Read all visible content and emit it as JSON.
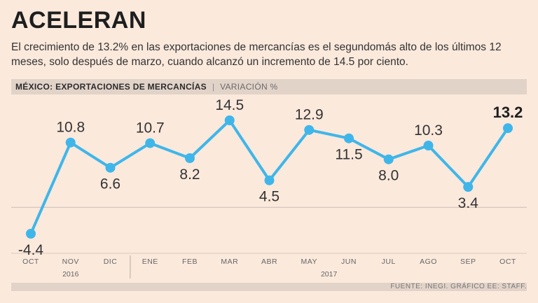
{
  "header": {
    "title": "ACELERAN",
    "subtitle": "El crecimiento de 13.2% en las exportaciones de mercancías es el segundomás alto de los últimos 12 meses, solo después de marzo, cuando alcanzó un incremento de 14.5 por ciento."
  },
  "chart_label": {
    "main": "MÉXICO: EXPORTACIONES DE MERCANCÍAS",
    "separator": "|",
    "unit": "VARIACIÓN %"
  },
  "footer": {
    "source": "FUENTE: INEGI. GRÁFICO EE: STAFF."
  },
  "colors": {
    "line": "#3fb6ea",
    "background": "#fbe9dc",
    "bar": "#e2d3c9"
  },
  "chart_data": {
    "type": "line",
    "title": "MÉXICO: EXPORTACIONES DE MERCANCÍAS",
    "ylabel": "VARIACIÓN %",
    "categories": [
      "OCT",
      "NOV",
      "DIC",
      "ENE",
      "FEB",
      "MAR",
      "ABR",
      "MAY",
      "JUN",
      "JUL",
      "AGO",
      "SEP",
      "OCT"
    ],
    "values": [
      -4.4,
      10.8,
      6.6,
      10.7,
      8.2,
      14.5,
      4.5,
      12.9,
      11.5,
      8.0,
      10.3,
      3.4,
      13.2
    ],
    "value_labels": [
      "-4.4",
      "10.8",
      "6.6",
      "10.7",
      "8.2",
      "14.5",
      "4.5",
      "12.9",
      "11.5",
      "8.0",
      "10.3",
      "3.4",
      "13.2"
    ],
    "label_positions": [
      "below",
      "above",
      "below",
      "above",
      "below",
      "above",
      "below",
      "above",
      "below",
      "below",
      "above",
      "below",
      "above"
    ],
    "highlight_index": 12,
    "year_groups": [
      {
        "label": "2016",
        "start": 0,
        "end": 2
      },
      {
        "label": "2017",
        "start": 3,
        "end": 12
      }
    ],
    "gridlines": [
      0
    ],
    "ylim": [
      -4.4,
      14.5
    ]
  }
}
